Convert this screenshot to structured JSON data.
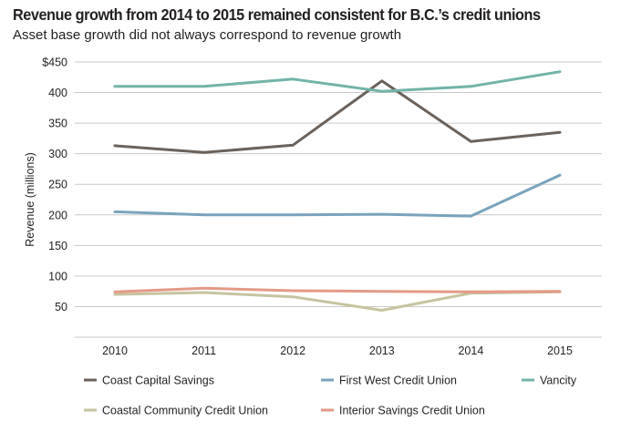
{
  "header": {
    "title": "Revenue growth from 2014 to 2015 remained consistent for B.C.’s credit unions",
    "subtitle": "Asset base growth did not always correspond to revenue growth"
  },
  "chart_data": {
    "type": "line",
    "title": "Revenue growth from 2014 to 2015 remained consistent for B.C.’s credit unions",
    "subtitle": "Asset base growth did not always correspond to revenue growth",
    "xlabel": "",
    "ylabel": "Revenue (millions)",
    "x": [
      "2010",
      "2011",
      "2012",
      "2013",
      "2014",
      "2015"
    ],
    "ylim": [
      0,
      450
    ],
    "yticks": [
      50,
      100,
      150,
      200,
      250,
      300,
      350,
      400,
      450
    ],
    "ytick_labels": [
      "50",
      "100",
      "150",
      "200",
      "250",
      "300",
      "350",
      "400",
      "$450"
    ],
    "grid": "horizontal",
    "legend_position": "bottom",
    "series": [
      {
        "name": "Coast Capital Savings",
        "color": "#6b625c",
        "values": [
          313,
          302,
          314,
          419,
          320,
          335
        ]
      },
      {
        "name": "First West Credit Union",
        "color": "#7aa3bd",
        "values": [
          205,
          200,
          200,
          201,
          198,
          265
        ]
      },
      {
        "name": "Vancity",
        "color": "#72b3a8",
        "values": [
          410,
          410,
          422,
          402,
          410,
          434
        ]
      },
      {
        "name": "Coastal Community Credit Union",
        "color": "#c6c3a1",
        "values": [
          70,
          73,
          66,
          44,
          72,
          74
        ]
      },
      {
        "name": "Interior Savings Credit Union",
        "color": "#e39a86",
        "values": [
          74,
          80,
          76,
          75,
          74,
          75
        ]
      }
    ]
  }
}
